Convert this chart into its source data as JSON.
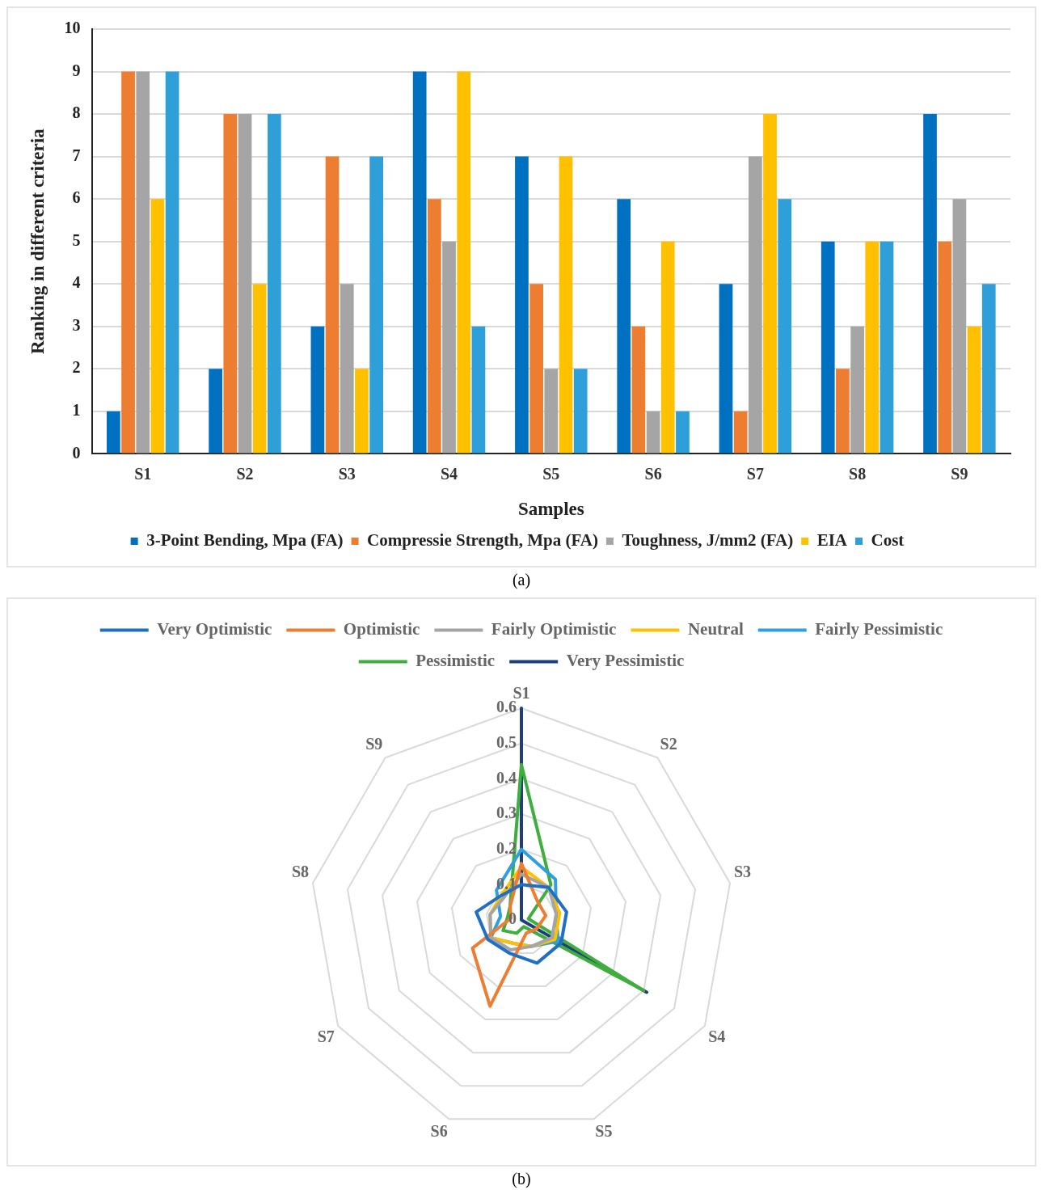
{
  "chart_data": [
    {
      "type": "bar",
      "xlabel": "Samples",
      "ylabel": "Ranking in different criteria",
      "categories": [
        "S1",
        "S2",
        "S3",
        "S4",
        "S5",
        "S6",
        "S7",
        "S8",
        "S9"
      ],
      "ylim": [
        0,
        10
      ],
      "yticks": [
        0,
        1,
        2,
        3,
        4,
        5,
        6,
        7,
        8,
        9,
        10
      ],
      "grid": "y",
      "legend": "bottom",
      "annotations": [
        "(a)"
      ],
      "series": [
        {
          "name": "3-Point Bending, Mpa (FA)",
          "color": "#0070c0",
          "values": [
            1,
            2,
            3,
            9,
            7,
            6,
            4,
            5,
            8
          ]
        },
        {
          "name": "Compressie Strength, Mpa (FA)",
          "color": "#ed7d31",
          "values": [
            9,
            8,
            7,
            6,
            4,
            3,
            1,
            2,
            5
          ]
        },
        {
          "name": "Toughness, J/mm2 (FA)",
          "color": "#a5a5a5",
          "values": [
            9,
            8,
            4,
            5,
            2,
            1,
            7,
            3,
            6
          ]
        },
        {
          "name": "EIA",
          "color": "#ffc000",
          "values": [
            6,
            4,
            2,
            9,
            7,
            5,
            8,
            5,
            3
          ]
        },
        {
          "name": "Cost",
          "color": "#2e9fd9",
          "values": [
            9,
            8,
            7,
            3,
            2,
            1,
            6,
            5,
            4
          ]
        }
      ]
    },
    {
      "type": "radar",
      "categories": [
        "S1",
        "S2",
        "S3",
        "S4",
        "S5",
        "S6",
        "S7",
        "S8",
        "S9"
      ],
      "ylim": [
        0,
        0.6
      ],
      "yticks": [
        0,
        0.1,
        0.2,
        0.3,
        0.4,
        0.5,
        0.6
      ],
      "grid": true,
      "legend": "top",
      "marker": "none",
      "annotations": [
        "(b)"
      ],
      "series": [
        {
          "name": "Very Optimistic",
          "color": "#1f6fc6",
          "values": [
            0.1,
            0.12,
            0.13,
            0.13,
            0.13,
            0.1,
            0.11,
            0.13,
            0.09
          ]
        },
        {
          "name": "Optimistic",
          "color": "#ed7d31",
          "values": [
            0.16,
            0.07,
            0.07,
            0.05,
            0.04,
            0.26,
            0.16,
            0.03,
            0.05
          ]
        },
        {
          "name": "Fairly Optimistic",
          "color": "#a5a5a5",
          "values": [
            0.13,
            0.12,
            0.1,
            0.1,
            0.08,
            0.09,
            0.1,
            0.09,
            0.08
          ]
        },
        {
          "name": "Neutral",
          "color": "#ffc000",
          "values": [
            0.15,
            0.12,
            0.11,
            0.11,
            0.08,
            0.07,
            0.1,
            0.09,
            0.09
          ]
        },
        {
          "name": "Fairly Pessimistic",
          "color": "#2f9fe0",
          "values": [
            0.2,
            0.15,
            0.1,
            0.12,
            0.08,
            0.07,
            0.1,
            0.06,
            0.11
          ]
        },
        {
          "name": "Pessimistic",
          "color": "#3fae3f",
          "values": [
            0.44,
            0.13,
            0.02,
            0.4,
            0.02,
            0.04,
            0.06,
            0.04,
            0.05
          ]
        },
        {
          "name": "Very Pessimistic",
          "color": "#1f3f78",
          "values": [
            0.6,
            0,
            0,
            0.41,
            0,
            0,
            0,
            0,
            0
          ]
        }
      ]
    }
  ]
}
